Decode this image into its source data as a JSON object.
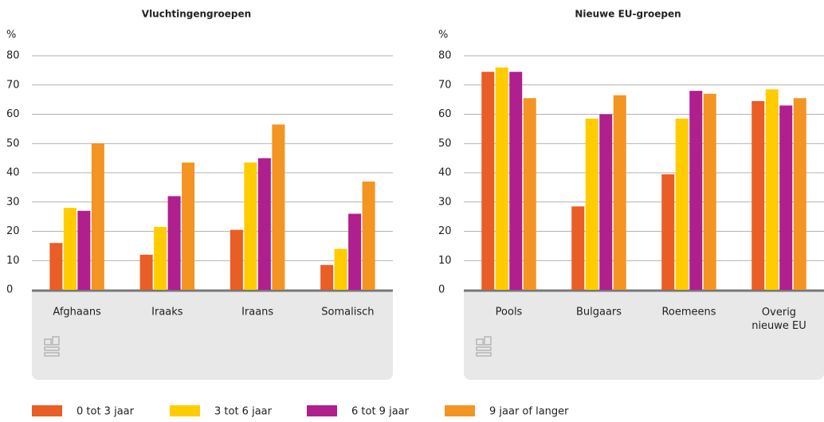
{
  "chart_data": [
    {
      "type": "bar",
      "title": "Vluchtingengroepen",
      "unit": "%",
      "categories": [
        "Afghaans",
        "Iraaks",
        "Iraans",
        "Somalisch"
      ],
      "series": [
        {
          "name": "0 tot 3 jaar",
          "color": "#e95d26",
          "values": [
            16,
            12,
            20.5,
            8.5
          ]
        },
        {
          "name": "3 tot 6 jaar",
          "color": "#ffcc00",
          "values": [
            28,
            21.5,
            43.5,
            14
          ]
        },
        {
          "name": "6 tot 9 jaar",
          "color": "#af1f8e",
          "values": [
            27,
            32,
            45,
            26
          ]
        },
        {
          "name": "9 jaar of langer",
          "color": "#f39423",
          "values": [
            50,
            43.5,
            56.5,
            37
          ]
        }
      ],
      "ylim": [
        0,
        80
      ],
      "yticks": [
        0,
        10,
        20,
        30,
        40,
        50,
        60,
        70,
        80
      ],
      "grid": true
    },
    {
      "type": "bar",
      "title": "Nieuwe EU-groepen",
      "unit": "%",
      "categories": [
        "Pools",
        "Bulgaars",
        "Roemeens",
        "Overig\nnieuwe EU"
      ],
      "series": [
        {
          "color": "#e95d26",
          "values": [
            74.5,
            28.5,
            39.5,
            64.5
          ]
        },
        {
          "color": "#ffcc00",
          "values": [
            76,
            58.5,
            58.5,
            68.5
          ]
        },
        {
          "color": "#af1f8e",
          "values": [
            74.5,
            60,
            68,
            63
          ]
        },
        {
          "color": "#f39423",
          "values": [
            65.5,
            66.5,
            67,
            65.5
          ]
        }
      ],
      "ylim": [
        0,
        80
      ],
      "yticks": [
        0,
        10,
        20,
        30,
        40,
        50,
        60,
        70,
        80
      ],
      "grid": true
    }
  ]
}
